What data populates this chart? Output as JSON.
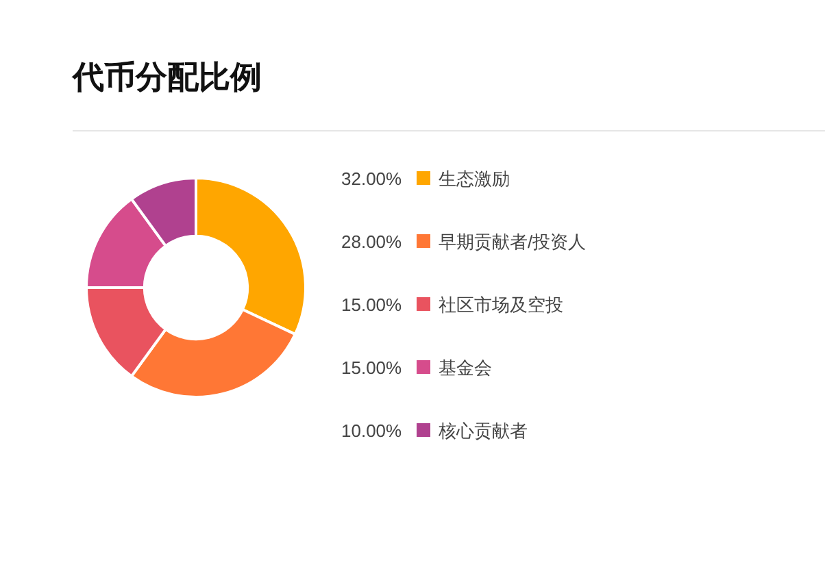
{
  "chart_data": {
    "type": "donut",
    "title": "代币分配比例",
    "categories": [
      "生态激励",
      "早期贡献者/投资人",
      "社区市场及空投",
      "基金会",
      "核心贡献者"
    ],
    "values": [
      32,
      28,
      15,
      15,
      10
    ],
    "value_labels": [
      "32.00%",
      "28.00%",
      "15.00%",
      "15.00%",
      "10.00%"
    ],
    "colors": [
      "#ffa600",
      "#ff7735",
      "#e9535f",
      "#d64c8c",
      "#b0418f"
    ],
    "legend": "right"
  }
}
